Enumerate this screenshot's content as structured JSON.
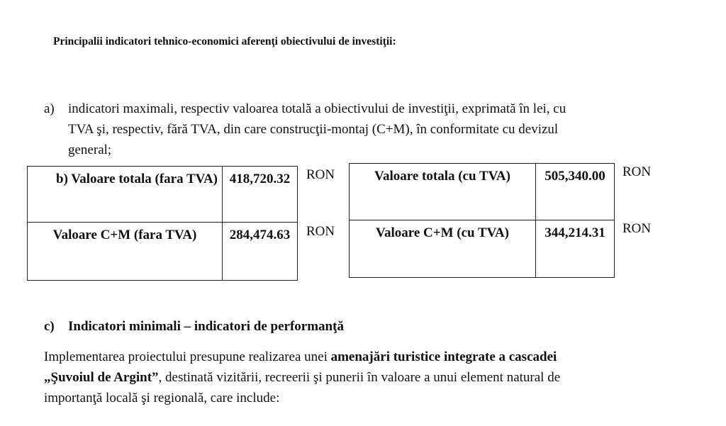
{
  "heading": "Principalii indicatori tehnico-economici aferenţi obiectivului de investiţii:",
  "item_a": {
    "marker": "a)",
    "lines": [
      "indicatori maximali, respectiv valoarea totală a obiectivului de investiţii, exprimată în lei, cu",
      "TVA şi, respectiv, fără TVA, din care construcţii-montaj (C+M), în conformitate cu devizul",
      "general;"
    ]
  },
  "table_left": {
    "rows": [
      {
        "label": "b)  Valoare totala (fara TVA)",
        "value": "418,720.32",
        "unit": "RON"
      },
      {
        "label": "Valoare C+M (fara TVA)",
        "value": "284,474.63",
        "unit": "RON"
      }
    ]
  },
  "table_right": {
    "rows": [
      {
        "label": "Valoare totala (cu TVA)",
        "value": "505,340.00",
        "unit": "RON"
      },
      {
        "label": "Valoare C+M (cu TVA)",
        "value": "344,214.31",
        "unit": "RON"
      }
    ]
  },
  "item_c": {
    "marker": "c)",
    "title": "Indicatori minimali – indicatori de performanţă"
  },
  "paragraph": {
    "l1_a": "Implementarea proiectului presupune realizarea unei ",
    "l1_b": "amenajări turistice integrate a cascadei",
    "l2_a": "„Şuvoiul de Argint”",
    "l2_b": ", destinată vizitării, recreerii şi punerii în valoare a unui element natural de",
    "l3": "importanţă locală şi regională, care include:"
  }
}
